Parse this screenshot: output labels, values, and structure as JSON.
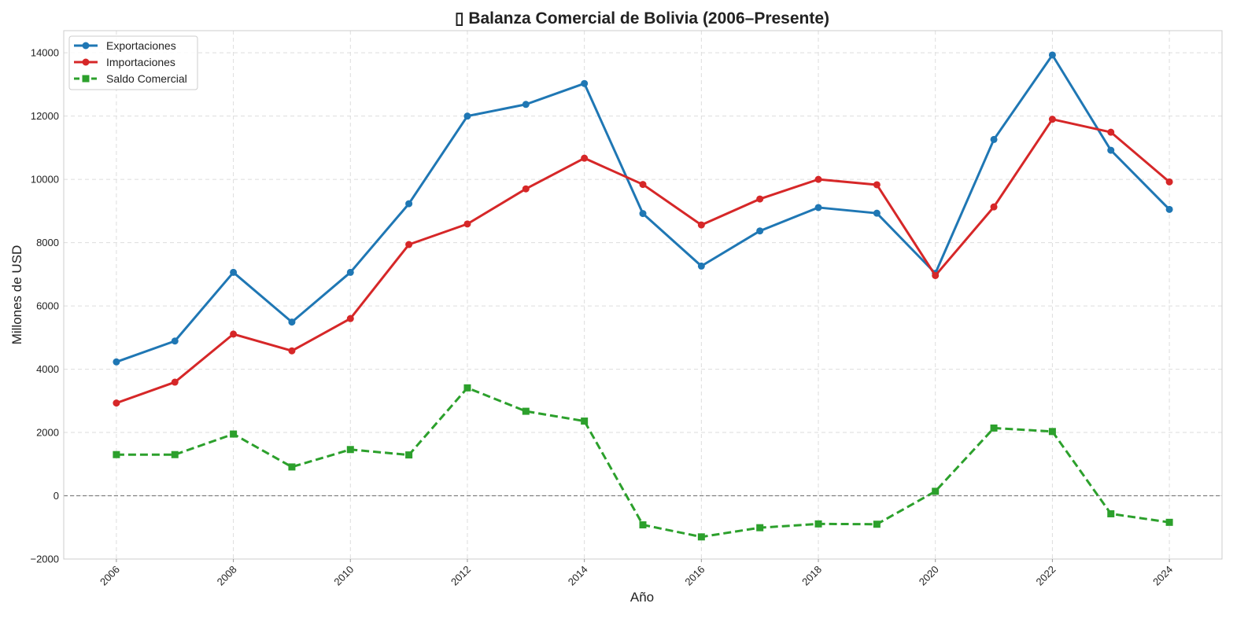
{
  "chart_data": {
    "type": "line",
    "title": "▯ Balanza Comercial de Bolivia (2006–Presente)",
    "xlabel": "Año",
    "ylabel": "Millones de USD",
    "x": [
      2006,
      2007,
      2008,
      2009,
      2010,
      2011,
      2012,
      2013,
      2014,
      2015,
      2016,
      2017,
      2018,
      2019,
      2020,
      2021,
      2022,
      2023,
      2024
    ],
    "xlim": [
      2005.1,
      2024.9
    ],
    "ylim": [
      -2000,
      14700
    ],
    "x_ticks": [
      "2006",
      "2008",
      "2010",
      "2012",
      "2014",
      "2016",
      "2018",
      "2020",
      "2022",
      "2024"
    ],
    "y_ticks": [
      "−2000",
      "0",
      "2000",
      "4000",
      "6000",
      "8000",
      "10000",
      "12000",
      "14000"
    ],
    "grid": true,
    "legend_position": "top-left",
    "zero_line": {
      "value": 0,
      "style": "dashed",
      "color": "#808080"
    },
    "series": [
      {
        "name": "Exportaciones",
        "color": "#1f77b4",
        "marker": "circle",
        "line_style": "solid",
        "values": [
          4230,
          4890,
          7060,
          5490,
          7060,
          9230,
          12000,
          12370,
          13030,
          8920,
          7260,
          8370,
          9110,
          8930,
          7030,
          11260,
          13930,
          10920,
          9050
        ]
      },
      {
        "name": "Importaciones",
        "color": "#d62728",
        "marker": "circle",
        "line_style": "solid",
        "values": [
          2930,
          3590,
          5110,
          4580,
          5600,
          7940,
          8590,
          9700,
          10670,
          9840,
          8560,
          9380,
          10000,
          9830,
          6960,
          9130,
          11900,
          11490,
          9920
        ]
      },
      {
        "name": "Saldo Comercial",
        "color": "#2ca02c",
        "marker": "square",
        "line_style": "dashed",
        "values": [
          1300,
          1300,
          1950,
          910,
          1460,
          1290,
          3410,
          2670,
          2360,
          -920,
          -1300,
          -1010,
          -890,
          -900,
          140,
          2140,
          2030,
          -570,
          -840
        ]
      }
    ]
  }
}
